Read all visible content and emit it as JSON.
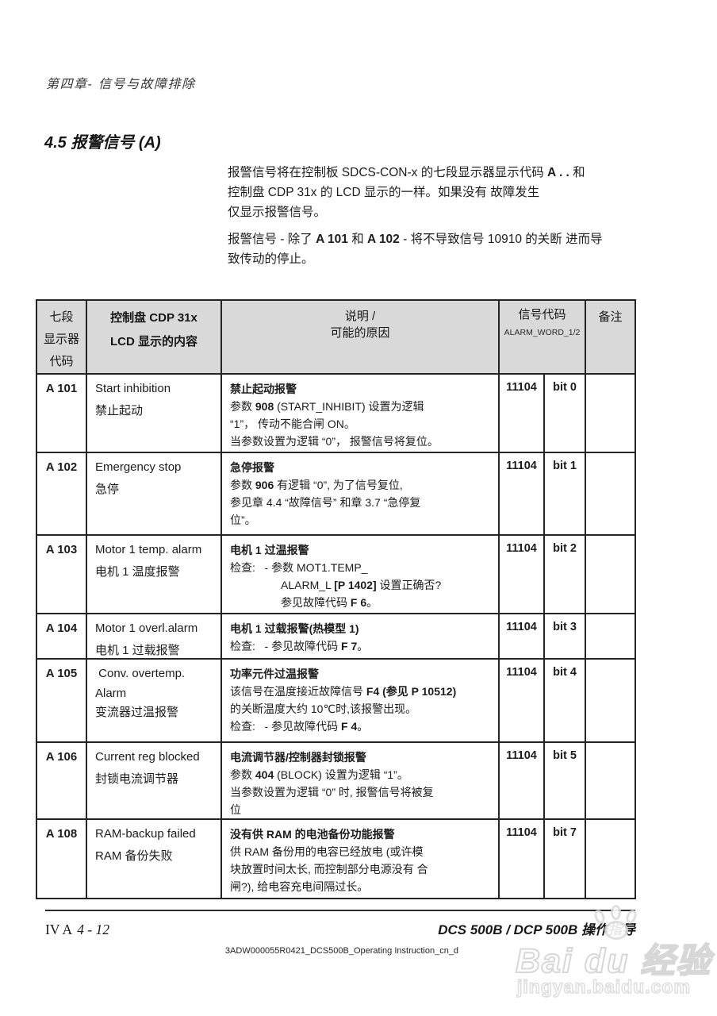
{
  "page": {
    "chapter_header": "第四章- 信号与故障排除",
    "section_title": "4.5 报警信号 (A)"
  },
  "intro": {
    "paragraphs": [
      {
        "lines": [
          [
            [
              "报警信号将在控制板 SDCS-CON-x 的七段显示器显示代码 ",
              0
            ],
            [
              "A . .",
              1
            ],
            [
              "  和",
              0
            ]
          ],
          [
            [
              "控制盘 CDP 31x 的 LCD 显示的一样。如果没有 故障发生",
              0
            ]
          ],
          [
            [
              "仅显示报警信号。",
              0
            ]
          ]
        ]
      },
      {
        "lines": [
          [
            [
              "报警信号 - 除了 ",
              0
            ],
            [
              "A 101",
              1
            ],
            [
              " 和 ",
              0
            ],
            [
              "A 102",
              1
            ],
            [
              " - 将不导致信号 10910 的关断 进而导",
              0
            ]
          ],
          [
            [
              "致传动的停止。",
              0
            ]
          ]
        ]
      }
    ]
  },
  "table": {
    "headers": {
      "col_display_code": [
        "七段",
        "显示器",
        "代码"
      ],
      "col_lcd": [
        "控制盘 CDP 31x",
        "LCD 显示的内容"
      ],
      "col_desc": [
        "说明 /",
        "可能的原因"
      ],
      "col_signal": "信号代码",
      "col_signal_sub": "ALARM_WORD_1/2",
      "col_note": "备注"
    },
    "rows": [
      {
        "code": "A 101",
        "lcd": [
          "Start inhibition",
          "禁止起动"
        ],
        "desc": [
          {
            "ind": 0,
            "seg": [
              [
                "禁止起动报警",
                1
              ]
            ]
          },
          {
            "ind": 0,
            "seg": [
              [
                "参数 ",
                0
              ],
              [
                "908",
                1
              ],
              [
                " (START_INHIBIT) 设置为逻辑",
                0
              ]
            ]
          },
          {
            "ind": 0,
            "seg": [
              [
                "“1”， 传动不能合闸 ON。",
                0
              ]
            ]
          },
          {
            "ind": 0,
            "seg": [
              [
                "当参数设置为逻辑 “0”， 报警信号将复位。",
                0
              ]
            ]
          }
        ],
        "signal": "11104",
        "bit": "bit 0",
        "note": ""
      },
      {
        "code": "A 102",
        "lcd": [
          "Emergency stop",
          "急停"
        ],
        "desc": [
          {
            "ind": 0,
            "seg": [
              [
                "急停报警",
                1
              ]
            ]
          },
          {
            "ind": 0,
            "seg": [
              [
                "参数 ",
                0
              ],
              [
                "906",
                1
              ],
              [
                " 有逻辑 “0”, 为了信号复位,",
                0
              ]
            ]
          },
          {
            "ind": 0,
            "seg": [
              [
                "参见章 4.4 “故障信号” 和章 3.7 “急停复",
                0
              ]
            ]
          },
          {
            "ind": 0,
            "seg": [
              [
                "位”。",
                0
              ]
            ]
          }
        ],
        "signal": "11104",
        "bit": "bit 1",
        "note": ""
      },
      {
        "code": "A 103",
        "lcd": [
          "Motor 1 temp. alarm",
          "电机 1 温度报警"
        ],
        "desc": [
          {
            "ind": 0,
            "seg": [
              [
                "电机 1 过温报警",
                1
              ]
            ]
          },
          {
            "ind": 0,
            "seg": [
              [
                "检查:   - 参数 MOT1.TEMP_",
                0
              ]
            ]
          },
          {
            "ind": 1,
            "seg": [
              [
                "ALARM_L ",
                0
              ],
              [
                "[P 1402]",
                1
              ],
              [
                " 设置正确否?",
                0
              ]
            ]
          },
          {
            "ind": 1,
            "seg": [
              [
                "参见故障代码 ",
                0
              ],
              [
                "F 6",
                1
              ],
              [
                "。",
                0
              ]
            ]
          }
        ],
        "signal": "11104",
        "bit": "bit 2",
        "note": ""
      },
      {
        "code": "A 104",
        "lcd": [
          "Motor 1 overl.alarm",
          "电机 1 过载报警"
        ],
        "desc": [
          {
            "ind": 0,
            "seg": [
              [
                "电机 1 过载报警(热模型 1)",
                1
              ]
            ]
          },
          {
            "ind": 0,
            "seg": [
              [
                "检查:   - 参见故障代码 ",
                0
              ],
              [
                "F 7",
                1
              ],
              [
                "。",
                0
              ]
            ]
          }
        ],
        "signal": "11104",
        "bit": "bit 3",
        "note": ""
      },
      {
        "code": "A 105",
        "lcd": [
          " Conv. overtemp.",
          "Alarm",
          "",
          "变流器过温报警"
        ],
        "desc": [
          {
            "ind": 0,
            "seg": [
              [
                "功率元件过温报警",
                1
              ]
            ]
          },
          {
            "ind": 0,
            "seg": [
              [
                "该信号在温度接近故障信号 ",
                0
              ],
              [
                "F4 (参见 P 10512)",
                1
              ]
            ]
          },
          {
            "ind": 0,
            "seg": [
              [
                "的关断温度大约 10℃时,该报警出现。",
                0
              ]
            ]
          },
          {
            "ind": 0,
            "seg": [
              [
                "检查:   - 参见故障代码 ",
                0
              ],
              [
                "F 4",
                1
              ],
              [
                "。",
                0
              ]
            ]
          }
        ],
        "signal": "11104",
        "bit": "bit 4",
        "note": ""
      },
      {
        "code": "A 106",
        "lcd": [
          "Current reg blocked",
          "封锁电流调节器"
        ],
        "desc": [
          {
            "ind": 0,
            "seg": [
              [
                "电流调节器/控制器封锁报警",
                1
              ]
            ]
          },
          {
            "ind": 0,
            "seg": [
              [
                "参数 ",
                0
              ],
              [
                "404",
                1
              ],
              [
                " (BLOCK) 设置为逻辑 “1”。",
                0
              ]
            ]
          },
          {
            "ind": 0,
            "seg": [
              [
                "当参数设置为逻辑 “0” 时, 报警信号将被复",
                0
              ]
            ]
          },
          {
            "ind": 0,
            "seg": [
              [
                "位",
                0
              ]
            ]
          }
        ],
        "signal": "11104",
        "bit": "bit 5",
        "note": ""
      },
      {
        "code": "A 108",
        "lcd": [
          "RAM-backup failed",
          "RAM 备份失败"
        ],
        "desc": [
          {
            "ind": 0,
            "seg": [
              [
                "没有供 RAM 的电池备份功能报警",
                1
              ]
            ]
          },
          {
            "ind": 0,
            "seg": [
              [
                "供 RAM 备份用的电容已经放电 (或许模",
                0
              ]
            ]
          },
          {
            "ind": 0,
            "seg": [
              [
                "块放置时间太长, 而控制部分电源没有 合",
                0
              ]
            ]
          },
          {
            "ind": 0,
            "seg": [
              [
                "闸?), 给电容充电间隔过长。",
                0
              ]
            ]
          }
        ],
        "signal": "11104",
        "bit": "bit 7",
        "note": ""
      }
    ]
  },
  "footer": {
    "page_prefix": "IV A",
    "page_number": "4 - 12",
    "doc_title": "DCS 500B / DCP 500B 操作指导",
    "doc_id": "3ADW000055R0421_DCS500B_Operating Instruction_cn_d"
  },
  "watermark": {
    "logo": "Bai du 经验",
    "url": "jingyan.baidu.com"
  },
  "colors": {
    "table_header_bg": "#d9d9d9",
    "border": "#242424",
    "watermark_gray": "#d7d7d7"
  }
}
